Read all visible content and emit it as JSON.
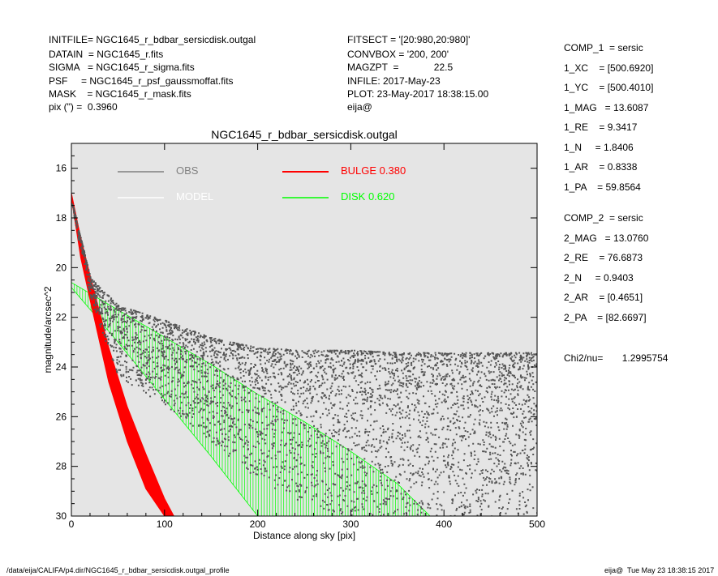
{
  "header": {
    "left": [
      "INITFILE= NGC1645_r_bdbar_sersicdisk.outgal",
      "DATAIN  = NGC1645_r.fits",
      "SIGMA   = NGC1645_r_sigma.fits",
      "PSF     = NGC1645_r_psf_gaussmoffat.fits",
      "MASK    = NGC1645_r_mask.fits",
      "pix (\") =  0.3960"
    ],
    "middle": [
      "FITSECT = '[20:980,20:980]'",
      "CONVBOX = '200, 200'",
      "MAGZPT  =             22.5",
      "INFILE: 2017-May-23",
      "PLOT: 23-May-2017 18:38:15.00",
      "eija@"
    ]
  },
  "params": [
    "COMP_1  = sersic",
    "1_XC    = [500.6920]",
    "1_YC    = [500.4010]",
    "1_MAG   = 13.6087",
    "1_RE    = 9.3417",
    "1_N     = 1.8406",
    "1_AR    = 0.8338",
    "1_PA    = 59.8564",
    "COMP_2  = sersic",
    "2_MAG   = 13.0760",
    "2_RE    = 76.6873",
    "2_N     = 0.9403",
    "2_AR    = [0.4651]",
    "2_PA    = [82.6697]",
    "Chi2/nu=       1.2995754"
  ],
  "footer": {
    "path": "/data/eija/CALIFA/p4.dir/NGC1645_r_bdbar_sersicdisk.outgal_profile",
    "stamp": "eija@  Tue May 23 18:38:15 2017"
  },
  "colors": {
    "obs": "#555555",
    "model": "#ffffff",
    "bulge": "#ff0000",
    "disk": "#00ff00",
    "plot_bg": "#e5e5e5"
  },
  "chart_data": {
    "type": "scatter",
    "title": "NGC1645_r_bdbar_sersicdisk.outgal",
    "xlabel": "Distance along sky [pix]",
    "ylabel": "magnitude/arcsec^2",
    "xlim": [
      0,
      500
    ],
    "ylim": [
      30,
      15
    ],
    "xticks": [
      0,
      100,
      200,
      300,
      400,
      500
    ],
    "yticks": [
      16,
      18,
      20,
      22,
      24,
      26,
      28,
      30
    ],
    "legend": [
      {
        "name": "OBS",
        "color": "#808080"
      },
      {
        "name": "MODEL",
        "color": "#ffffff"
      },
      {
        "name": "BULGE",
        "value": "0.380",
        "color": "#ff0000"
      },
      {
        "name": "DISK",
        "value": "0.620",
        "color": "#00ff00"
      }
    ],
    "series": [
      {
        "name": "OBS",
        "kind": "scatter band",
        "x": [
          0,
          20,
          50,
          100,
          150,
          200,
          250,
          300,
          350,
          400,
          450,
          500
        ],
        "y_bright": [
          17.3,
          20.4,
          21.5,
          22.1,
          22.8,
          23.2,
          23.3,
          23.3,
          23.4,
          23.4,
          23.4,
          23.4
        ],
        "y_faint": [
          17.6,
          21.2,
          24.5,
          25.5,
          27.0,
          28.5,
          29.5,
          30.0,
          30.0,
          30.0,
          30.0,
          30.0
        ]
      },
      {
        "name": "BULGE",
        "kind": "band",
        "x": [
          0,
          10,
          20,
          40,
          60,
          80,
          100,
          110,
          115
        ],
        "y_bright": [
          17.0,
          18.8,
          20.3,
          23.2,
          25.6,
          27.5,
          29.3,
          30.0,
          30.0
        ],
        "y_faint": [
          17.2,
          19.6,
          21.3,
          24.6,
          27.0,
          28.9,
          30.0,
          30.0,
          30.0
        ]
      },
      {
        "name": "DISK",
        "kind": "band",
        "x": [
          0,
          50,
          100,
          150,
          200,
          250,
          300,
          350,
          385
        ],
        "y_bright": [
          20.6,
          21.7,
          22.8,
          23.9,
          25.1,
          26.2,
          27.4,
          28.7,
          30.0
        ],
        "y_faint": [
          20.8,
          23.0,
          25.3,
          27.6,
          30.0,
          30.0,
          30.0,
          30.0,
          30.0
        ]
      }
    ]
  }
}
